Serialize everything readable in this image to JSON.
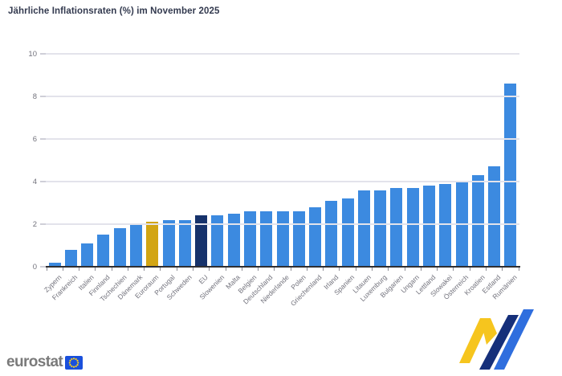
{
  "chart_data": {
    "type": "bar",
    "title": "Jährliche Inflationsraten (%) im November 2025",
    "unit": "%",
    "categories": [
      "Zypern",
      "Frankreich",
      "Italien",
      "Finnland",
      "Tschechien",
      "Dänemark",
      "Euroraum",
      "Portugal",
      "Schweden",
      "EU",
      "Slowenien",
      "Malta",
      "Belgien",
      "Deutschland",
      "Niederlande",
      "Polen",
      "Griechenland",
      "Irland",
      "Spanien",
      "Litauen",
      "Luxemburg",
      "Bulgarien",
      "Ungarn",
      "Lettland",
      "Slowakei",
      "Österreich",
      "Kroatien",
      "Estland",
      "Rumänien"
    ],
    "values": [
      0.2,
      0.8,
      1.1,
      1.5,
      1.8,
      2.0,
      2.1,
      2.2,
      2.2,
      2.4,
      2.4,
      2.5,
      2.6,
      2.6,
      2.6,
      2.6,
      2.8,
      3.1,
      3.2,
      3.6,
      3.6,
      3.7,
      3.7,
      3.8,
      3.9,
      4.0,
      4.3,
      4.7,
      8.6
    ],
    "ylim": [
      0,
      10
    ],
    "y_ticks": [
      0,
      2,
      4,
      6,
      8,
      10
    ],
    "grid": "horizontal",
    "legend": "none",
    "highlighted_bars": {
      "6": "euro_area",
      "9": "eu"
    }
  },
  "colors": {
    "bar": "#3C8AE0",
    "euro_area": "#D2A513",
    "eu": "#16326B",
    "grid": "#E3E3EB",
    "axis": "#2F2F33",
    "xtick": "#8B8B94",
    "ystub": "#CFCFD8",
    "tick_label": "#72727C",
    "title": "#333A4F",
    "logo_text": "#7A7A7A",
    "logo_square": "#1A50DC",
    "logo_star": "#FFD21C",
    "mark_yellow": "#F6C51E",
    "mark_navy": "#152F7A",
    "mark_blue": "#2F6EDE"
  },
  "footer": {
    "logo_text": "eurostat"
  }
}
